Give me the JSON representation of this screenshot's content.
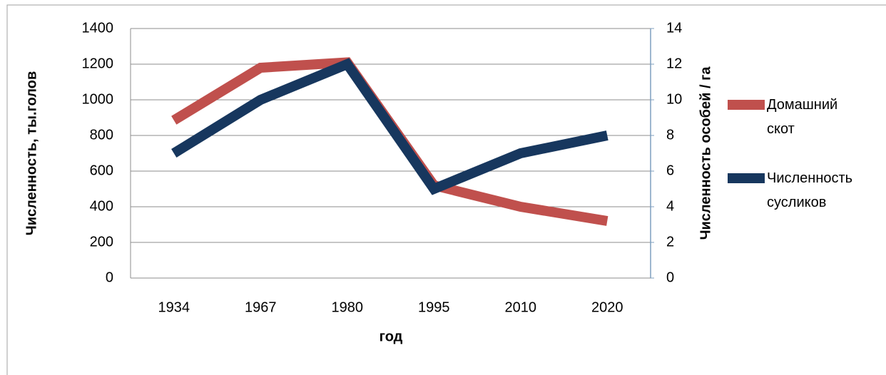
{
  "chart_data": {
    "type": "line",
    "categories": [
      "1934",
      "1967",
      "1980",
      "1995",
      "2010",
      "2020"
    ],
    "series": [
      {
        "name": "Домашний скот",
        "color": "#c0504d",
        "values": [
          885,
          1180,
          1210,
          520,
          400,
          320
        ]
      },
      {
        "name": "Численность сусликов",
        "color": "#17375e",
        "axis": "y2",
        "values": [
          7,
          10,
          12,
          5,
          7,
          8
        ]
      }
    ],
    "xlabel": "год",
    "ylabel": "Численность, ты.голов",
    "y2label": "Численность особей / га",
    "ylim": [
      0,
      1400
    ],
    "yticks": [
      0,
      200,
      400,
      600,
      800,
      1000,
      1200,
      1400
    ],
    "y2lim": [
      0,
      14
    ],
    "y2ticks": [
      0,
      2,
      4,
      6,
      8,
      10,
      12,
      14
    ],
    "grid": true,
    "legend": "right"
  }
}
